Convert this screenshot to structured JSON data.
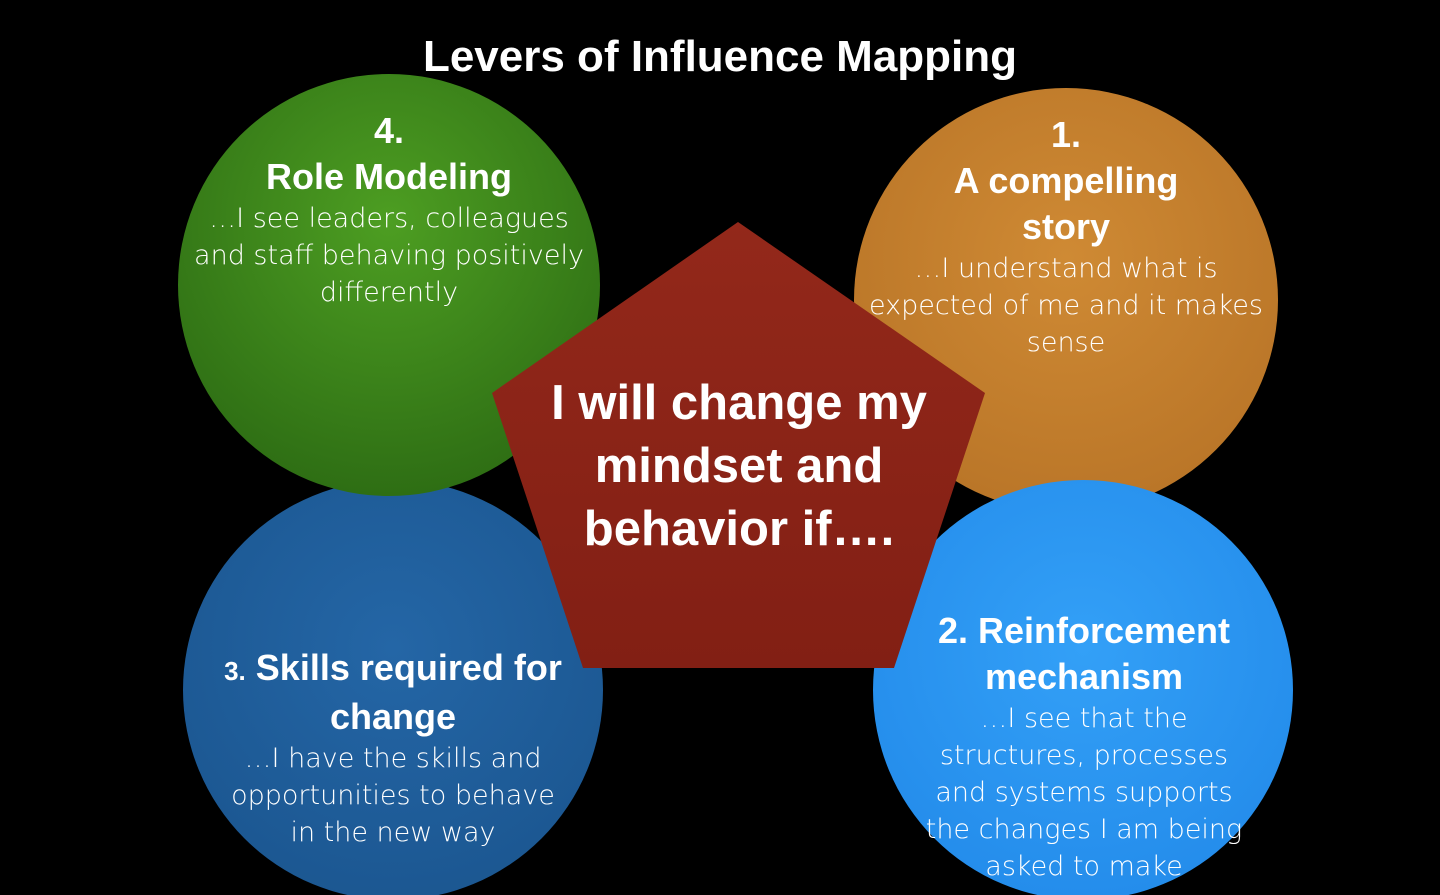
{
  "title": "Levers of Influence Mapping",
  "center": {
    "text": "I will change my mindset and behavior if…."
  },
  "colors": {
    "background": "#000000",
    "role_modeling": "#3f8a1c",
    "compelling_story": "#c7822f",
    "skills": "#1f5e9c",
    "reinforcement": "#2b97f3",
    "center": "#8a2417"
  },
  "levers": {
    "role_modeling": {
      "number": "4.",
      "heading": "Role Modeling",
      "description": "…I see leaders, colleagues and staff behaving positively differently"
    },
    "compelling_story": {
      "number": "1.",
      "heading": "A compelling story",
      "description": "…I understand what is expected of me and it makes sense"
    },
    "skills": {
      "number": "3.",
      "heading": "Skills required for change",
      "description": "…I have the skills and opportunities to behave in the new way"
    },
    "reinforcement": {
      "number": "2.",
      "heading": "Reinforcement mechanism",
      "description": "…I see that the structures, processes and systems supports the changes I am being asked to make"
    }
  }
}
